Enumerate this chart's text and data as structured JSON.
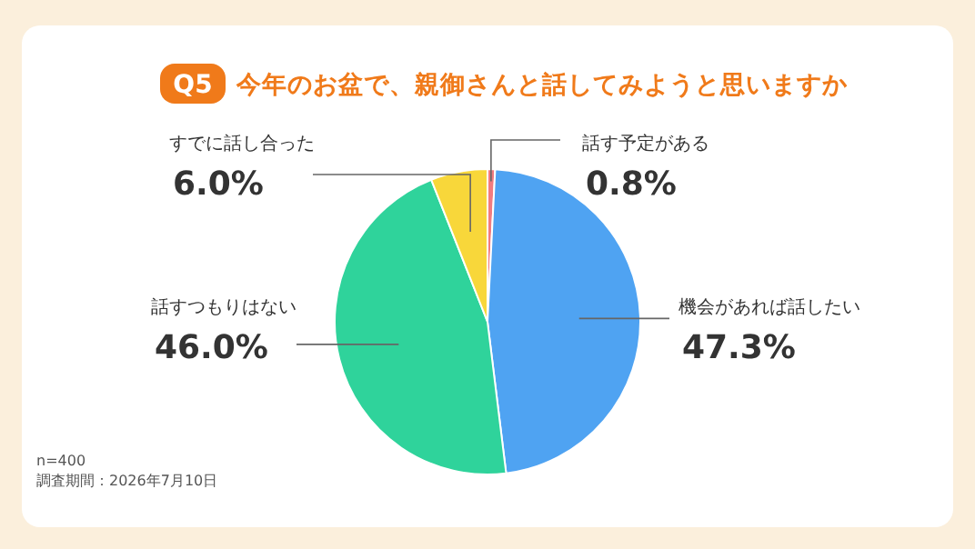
{
  "chart_data": {
    "type": "pie",
    "title": "今年のお盆で、親御さんと話してみようと思いますか",
    "categories": [
      "話す予定がある",
      "機会があれば話したい",
      "話すつもりはない",
      "すでに話し合った"
    ],
    "values": [
      0.8,
      47.3,
      46.0,
      6.0
    ],
    "value_labels": [
      "0.8%",
      "47.3%",
      "46.0%",
      "6.0%"
    ],
    "colors": [
      "#f27b80",
      "#4fa3f2",
      "#2fd39b",
      "#f8d73a"
    ],
    "legend": false,
    "annotations": [
      "Q5",
      "n=400",
      "調査期間：2026年7月10日"
    ]
  }
}
